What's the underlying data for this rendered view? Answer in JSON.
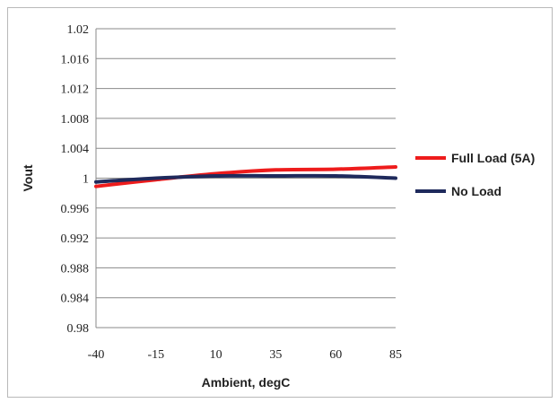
{
  "chart_data": {
    "type": "line",
    "title": "",
    "xlabel": "Ambient, degC",
    "ylabel": "Vout",
    "x_ticks": [
      "-40",
      "-15",
      "10",
      "35",
      "60",
      "85"
    ],
    "y_ticks": [
      "0.98",
      "0.984",
      "0.988",
      "0.992",
      "0.996",
      "1",
      "1.004",
      "1.008",
      "1.012",
      "1.016",
      "1.02"
    ],
    "xlim": [
      -40,
      85
    ],
    "ylim": [
      0.98,
      1.02
    ],
    "grid": "horizontal",
    "legend_position": "right",
    "x": [
      -40,
      -15,
      10,
      35,
      60,
      85
    ],
    "series": [
      {
        "name": "Full Load (5A)",
        "color": "#ee1c1c",
        "values": [
          0.9989,
          0.9998,
          1.0006,
          1.0011,
          1.0012,
          1.0015
        ]
      },
      {
        "name": "No Load",
        "color": "#1f2a5c",
        "values": [
          0.9995,
          1.0,
          1.0003,
          1.0003,
          1.0003,
          1.0
        ]
      }
    ]
  }
}
